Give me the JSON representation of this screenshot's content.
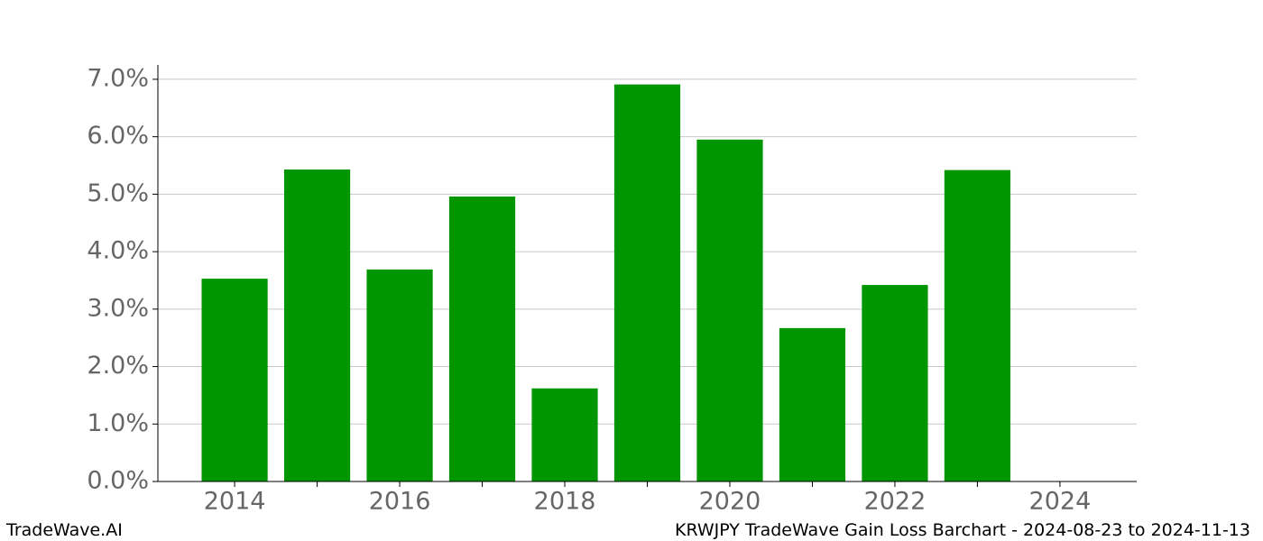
{
  "chart_data": {
    "type": "bar",
    "x": [
      2014,
      2015,
      2016,
      2017,
      2018,
      2019,
      2020,
      2021,
      2022,
      2023
    ],
    "values": [
      3.53,
      5.43,
      3.69,
      4.96,
      1.62,
      6.91,
      5.95,
      2.67,
      3.42,
      5.42
    ],
    "color": "#009600",
    "xlim": [
      2013.07,
      2024.93
    ],
    "xticks": [
      2014,
      2016,
      2018,
      2020,
      2022,
      2024
    ],
    "xminorticks": [
      2015,
      2017,
      2019,
      2021,
      2023
    ],
    "ylim": [
      0,
      7.25
    ],
    "yticks": [
      {
        "value": 0,
        "label": "0.0%"
      },
      {
        "value": 1,
        "label": "1.0%"
      },
      {
        "value": 2,
        "label": "2.0%"
      },
      {
        "value": 3,
        "label": "3.0%"
      },
      {
        "value": 4,
        "label": "4.0%"
      },
      {
        "value": 5,
        "label": "5.0%"
      },
      {
        "value": 6,
        "label": "6.0%"
      },
      {
        "value": 7,
        "label": "7.0%"
      }
    ],
    "grid": true,
    "footer_left": "TradeWave.AI",
    "footer_right": "KRWJPY TradeWave Gain Loss Barchart - 2024-08-23 to 2024-11-13"
  }
}
